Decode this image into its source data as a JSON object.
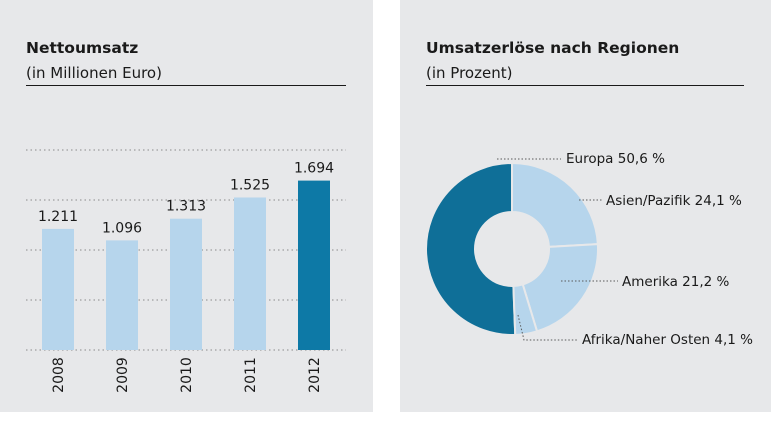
{
  "colors": {
    "panel_bg": "#e7e8ea",
    "bar_light": "#b6d5ec",
    "bar_highlight": "#0d79a6",
    "donut_dark": "#0f6f98",
    "donut_light": "#b6d5ec",
    "grid": "#8a8a8a",
    "text": "#1a1a1a"
  },
  "chart_data": [
    {
      "type": "bar",
      "title": "Nettoumsatz",
      "subtitle": "(in Millionen Euro)",
      "categories": [
        "2008",
        "2009",
        "2010",
        "2011",
        "2012"
      ],
      "values": [
        1211,
        1096,
        1313,
        1525,
        1694
      ],
      "value_labels": [
        "1.211",
        "1.096",
        "1.313",
        "1.525",
        "1.694"
      ],
      "highlight_index": 4,
      "ylim": [
        0,
        2000
      ],
      "grid": true
    },
    {
      "type": "pie",
      "title": "Umsatzerlöse nach Regionen",
      "subtitle": "(in Prozent)",
      "donut": true,
      "slices": [
        {
          "label": "Europa 50,6 %",
          "value": 50.6
        },
        {
          "label": "Asien/Pazifik 24,1 %",
          "value": 24.1
        },
        {
          "label": "Amerika 21,2 %",
          "value": 21.2
        },
        {
          "label": "Afrika/Naher Osten 4,1 %",
          "value": 4.1
        }
      ]
    }
  ]
}
